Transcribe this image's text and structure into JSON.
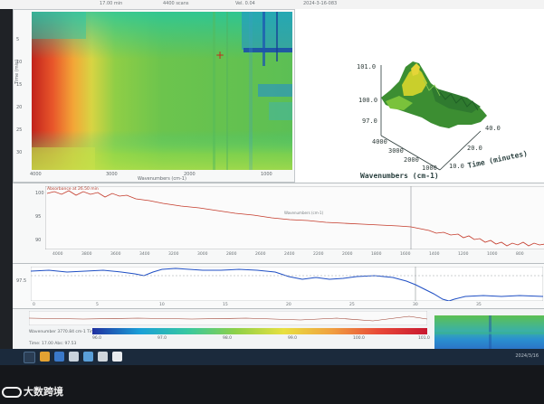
{
  "window": {
    "title_fragments": [
      "17.00 min",
      "4400 scans",
      "Vel. 0.04",
      "2024-3-16-083"
    ]
  },
  "map": {
    "ylabel": "Time (min)",
    "yticks": [
      "5",
      "10",
      "15",
      "20",
      "25",
      "30"
    ],
    "xticks": [
      "4000",
      "3000",
      "2000",
      "1000"
    ],
    "xlabel": "Wavenumbers (cm-1)",
    "cursor_marker": "+"
  },
  "surface": {
    "z_ticks": [
      "101.0",
      "100.0",
      "97.0"
    ],
    "time_ticks": [
      "40.0",
      "20.0",
      "10.0"
    ],
    "wn_ticks": [
      "4000",
      "3000",
      "2000",
      "1000"
    ],
    "xlabel": "Wavenumbers (cm-1)",
    "ylabel": "Time (minutes)"
  },
  "spectrum": {
    "legend": "Absorbance at 26.50 min",
    "yticks": [
      "100",
      "95",
      "90"
    ],
    "xticks": [
      "4000",
      "3800",
      "3600",
      "3400",
      "3200",
      "3000",
      "2800",
      "2600",
      "2400",
      "2200",
      "2000",
      "1800",
      "1600",
      "1400",
      "1200",
      "1000",
      "800"
    ],
    "xlabel": "Wavenumbers (cm-1)",
    "color": "#c43a2a"
  },
  "profile": {
    "ytick": "97.5",
    "xticks": [
      "0",
      "5",
      "10",
      "15",
      "20",
      "25",
      "30",
      "35"
    ],
    "color": "#1f4fc4"
  },
  "bottom": {
    "status": "Wavenumber 3770.84 cm-1   Time 10.28 min",
    "status2": "Time: 17.00  Abs: 97.53",
    "colorbar_ticks": [
      "96.0",
      "97.0",
      "98.0",
      "99.0",
      "100.0",
      "101.0"
    ]
  },
  "taskbar": {
    "tray": "2024/3/16"
  },
  "watermark": "大数跨境"
}
